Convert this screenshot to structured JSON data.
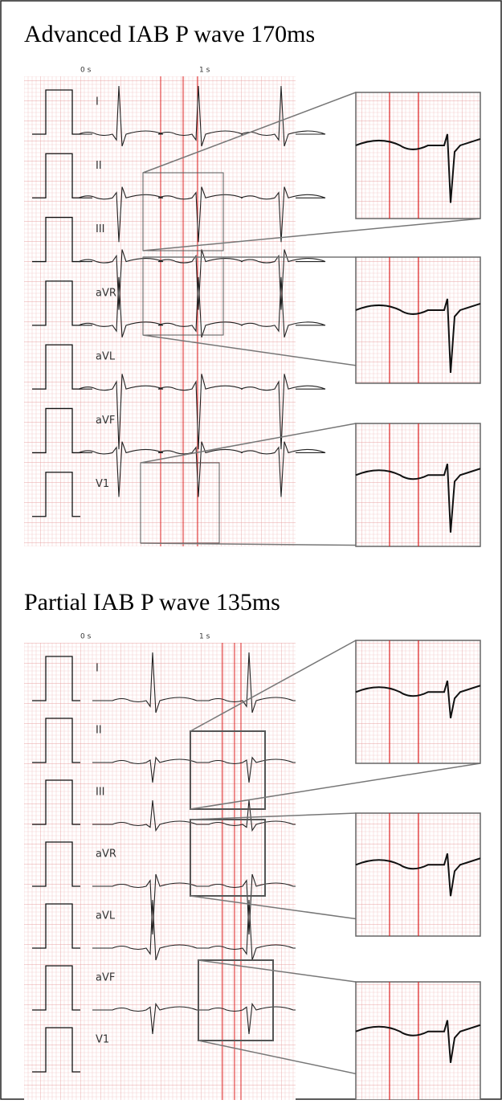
{
  "panels": [
    {
      "title": "Advanced IAB P wave 170ms",
      "time_labels": [
        "0 s",
        "1 s"
      ],
      "leads": [
        "I",
        "II",
        "III",
        "aVR",
        "aVL",
        "aVF",
        "V1"
      ]
    },
    {
      "title": "Partial IAB P wave 135ms",
      "time_labels": [
        "0 s",
        "1 s"
      ],
      "leads": [
        "I",
        "II",
        "III",
        "aVR",
        "aVL",
        "aVF",
        "V1"
      ]
    }
  ]
}
